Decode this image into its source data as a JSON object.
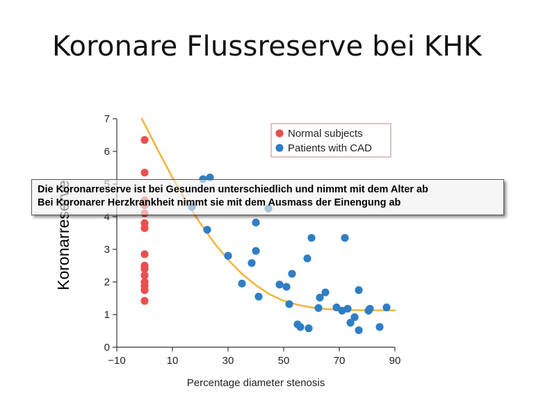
{
  "slide": {
    "title": "Koronare Flussreserve bei KHK",
    "ylabel_overlay": "Koronarreserve",
    "callout_lines": [
      "Die Koronarreserve ist bei Gesunden unterschiedlich und nimmt mit dem Alter ab",
      "Bei Koronarer Herzkrankheit nimmt sie mit dem Ausmass der Einengung ab"
    ]
  },
  "colors": {
    "normal": "#e8504e",
    "cad": "#2f7ec4",
    "curve": "#f2b642",
    "legend_border": "#cc9a9a"
  },
  "chart_data": {
    "type": "scatter",
    "title": "",
    "xlabel": "Percentage diameter stenosis",
    "ylabel": "",
    "xlim": [
      -10,
      90
    ],
    "ylim": [
      0,
      7
    ],
    "xticks": [
      "-10",
      "10",
      "30",
      "50",
      "70",
      "90"
    ],
    "yticks": [
      "0",
      "1",
      "2",
      "3",
      "4",
      "5",
      "6",
      "7"
    ],
    "legend": {
      "position": "top-right",
      "entries": [
        "Normal subjects",
        "Patients with CAD"
      ]
    },
    "series": [
      {
        "name": "Normal subjects",
        "points": [
          [
            0,
            6.35
          ],
          [
            0,
            5.35
          ],
          [
            0,
            4.5
          ],
          [
            0,
            4.35
          ],
          [
            0,
            4.1
          ],
          [
            0,
            3.8
          ],
          [
            0,
            3.65
          ],
          [
            0,
            2.85
          ],
          [
            0,
            2.5
          ],
          [
            0,
            2.4
          ],
          [
            0,
            2.2
          ],
          [
            0,
            2.0
          ],
          [
            0,
            1.88
          ],
          [
            0,
            1.75
          ],
          [
            0,
            1.42
          ]
        ]
      },
      {
        "name": "Patients with CAD",
        "points": [
          [
            17,
            4.3
          ],
          [
            21,
            5.15
          ],
          [
            23.5,
            5.2
          ],
          [
            22.5,
            3.6
          ],
          [
            30,
            2.8
          ],
          [
            35,
            1.95
          ],
          [
            38.5,
            2.58
          ],
          [
            40,
            2.95
          ],
          [
            40,
            3.82
          ],
          [
            41,
            1.55
          ],
          [
            44.5,
            4.25
          ],
          [
            48.5,
            1.92
          ],
          [
            51,
            1.85
          ],
          [
            52,
            1.32
          ],
          [
            53,
            2.25
          ],
          [
            55,
            0.7
          ],
          [
            56,
            0.62
          ],
          [
            58.5,
            2.72
          ],
          [
            59,
            0.58
          ],
          [
            60,
            3.35
          ],
          [
            62.5,
            1.2
          ],
          [
            63,
            1.52
          ],
          [
            65,
            1.68
          ],
          [
            69,
            1.22
          ],
          [
            71,
            1.12
          ],
          [
            72,
            3.35
          ],
          [
            73,
            1.18
          ],
          [
            74,
            0.75
          ],
          [
            75.5,
            0.92
          ],
          [
            77,
            1.75
          ],
          [
            77,
            0.52
          ],
          [
            80.5,
            1.12
          ],
          [
            81,
            1.18
          ],
          [
            84.5,
            0.62
          ],
          [
            87,
            1.22
          ]
        ]
      }
    ],
    "trend_curve": [
      [
        -1,
        7.0
      ],
      [
        5,
        6.0
      ],
      [
        10,
        5.2
      ],
      [
        15,
        4.45
      ],
      [
        20,
        3.8
      ],
      [
        25,
        3.2
      ],
      [
        30,
        2.68
      ],
      [
        35,
        2.25
      ],
      [
        40,
        1.9
      ],
      [
        45,
        1.62
      ],
      [
        50,
        1.42
      ],
      [
        55,
        1.3
      ],
      [
        60,
        1.22
      ],
      [
        65,
        1.17
      ],
      [
        70,
        1.15
      ],
      [
        75,
        1.14
      ],
      [
        80,
        1.13
      ],
      [
        85,
        1.13
      ],
      [
        90,
        1.13
      ]
    ]
  }
}
